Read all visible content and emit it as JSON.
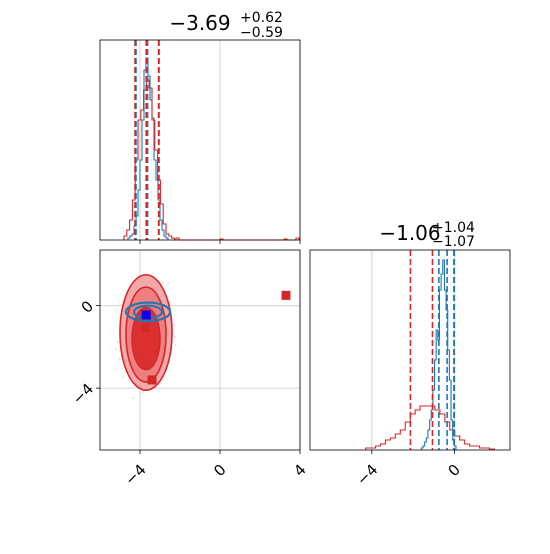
{
  "chart_data": [
    {
      "type": "histogram",
      "panel": "top-left",
      "title": {
        "main": "−3.69",
        "sup": "+0.62",
        "sub": "−0.59"
      },
      "xlim": [
        -6,
        4
      ],
      "grid": true,
      "quantile_lines": {
        "blue": [
          -4.2,
          -3.62,
          -3.05
        ],
        "red": [
          -4.25,
          -3.69,
          -3.07
        ]
      },
      "blue_hist": {
        "edges_start": -4.6,
        "bin_width": 0.1,
        "values": [
          0.01,
          0.02,
          0.03,
          0.07,
          0.12,
          0.25,
          0.4,
          0.6,
          0.85,
          0.91,
          0.82,
          0.7,
          0.61,
          0.4,
          0.3,
          0.2,
          0.1,
          0.05,
          0.02,
          0.01
        ]
      },
      "red_hist": {
        "edges_start": -4.8,
        "bin_width": 0.14,
        "values": [
          0.02,
          0.05,
          0.1,
          0.2,
          0.4,
          0.6,
          0.65,
          0.75,
          0.8,
          0.76,
          0.6,
          0.45,
          0.3,
          0.18,
          0.08,
          0.03,
          0.02,
          0.01
        ],
        "tail": [
          [
            -2.2,
            0.01
          ],
          [
            0.0,
            0.005
          ],
          [
            3.2,
            0.005
          ],
          [
            3.8,
            0.01
          ]
        ]
      }
    },
    {
      "type": "scatter-contour",
      "panel": "bottom-left",
      "xlim": [
        -6,
        4
      ],
      "ylim": [
        -7,
        2.7
      ],
      "xticks": [
        "−4",
        "0",
        "4"
      ],
      "yticks": [
        "0",
        "−4"
      ],
      "ytick_values": [
        0,
        -4
      ],
      "xtick_values": [
        -4,
        0,
        4
      ],
      "grid": true,
      "red_markers": [
        [
          -3.7,
          -1.06
        ],
        [
          -3.4,
          -3.6
        ],
        [
          3.3,
          0.5
        ]
      ],
      "blue_marker": [
        -3.69,
        -0.45
      ],
      "red_contours": [
        {
          "cx": -3.7,
          "cy": -1.3,
          "rx": 1.3,
          "ry": 2.8
        },
        {
          "cx": -3.7,
          "cy": -1.4,
          "rx": 1.0,
          "ry": 2.3
        },
        {
          "cx": -3.7,
          "cy": -1.6,
          "rx": 0.7,
          "ry": 1.5
        }
      ],
      "blue_contours": [
        {
          "cx": -3.6,
          "cy": -0.3,
          "rx": 1.1,
          "ry": 0.45
        },
        {
          "cx": -3.6,
          "cy": -0.3,
          "rx": 0.7,
          "ry": 0.3
        }
      ]
    },
    {
      "type": "histogram",
      "panel": "bottom-right",
      "title": {
        "main": "−1.06",
        "sup": "+1.04",
        "sub": "−1.07"
      },
      "xlim": [
        -7,
        2.7
      ],
      "xticks": [
        "−4",
        "0"
      ],
      "xtick_values": [
        -4,
        0
      ],
      "grid": true,
      "quantile_lines": {
        "blue": [
          -0.75,
          -0.35,
          0.0
        ],
        "red": [
          -2.13,
          -1.06,
          -0.02
        ]
      },
      "blue_hist": {
        "edges_start": -1.6,
        "bin_width": 0.08,
        "values": [
          0.01,
          0.02,
          0.04,
          0.06,
          0.1,
          0.15,
          0.2,
          0.3,
          0.45,
          0.6,
          0.55,
          0.8,
          0.88,
          0.95,
          0.8,
          0.7,
          0.5,
          0.35,
          0.15,
          0.05,
          0.02
        ]
      },
      "red_hist": {
        "edges_start": -4.3,
        "bin_width": 0.24,
        "values": [
          0.01,
          0.01,
          0.02,
          0.03,
          0.05,
          0.06,
          0.08,
          0.1,
          0.14,
          0.18,
          0.2,
          0.22,
          0.22,
          0.22,
          0.2,
          0.18,
          0.14,
          0.1,
          0.07,
          0.05,
          0.03,
          0.02,
          0.02,
          0.01,
          0.01,
          0.005
        ]
      }
    }
  ],
  "colors": {
    "red": "#d62728",
    "blue": "#1f77b4",
    "marker_blue": "#0000ff",
    "grid": "#c8c8c8"
  }
}
